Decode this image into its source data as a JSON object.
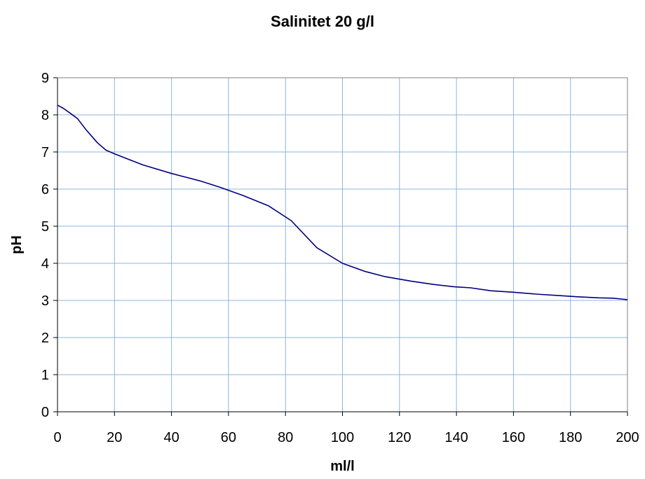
{
  "chart_data": {
    "type": "line",
    "title": "Salinitet 20 g/l",
    "xlabel": "ml/l",
    "ylabel": "pH",
    "xlim": [
      0,
      200
    ],
    "ylim": [
      0,
      9
    ],
    "x_ticks": [
      "0",
      "20",
      "40",
      "60",
      "80",
      "100",
      "120",
      "140",
      "160",
      "180",
      "200"
    ],
    "y_ticks": [
      "0",
      "1",
      "2",
      "3",
      "4",
      "5",
      "6",
      "7",
      "8",
      "9"
    ],
    "grid": true,
    "line_color": "#000080",
    "grid_color": "#8db4e2",
    "series": [
      {
        "x": [
          0,
          2,
          4,
          7,
          10,
          14,
          17,
          20,
          25,
          30,
          40,
          50,
          57,
          65,
          74,
          82,
          91,
          100,
          108,
          115,
          124,
          132,
          139,
          145,
          152,
          160,
          168,
          176,
          182,
          190,
          195,
          200
        ],
        "values": [
          8.26,
          8.18,
          8.07,
          7.9,
          7.6,
          7.25,
          7.05,
          6.95,
          6.8,
          6.65,
          6.42,
          6.22,
          6.05,
          5.83,
          5.55,
          5.15,
          4.42,
          4.0,
          3.78,
          3.64,
          3.52,
          3.43,
          3.37,
          3.34,
          3.26,
          3.22,
          3.17,
          3.13,
          3.1,
          3.07,
          3.06,
          3.02
        ]
      }
    ]
  }
}
